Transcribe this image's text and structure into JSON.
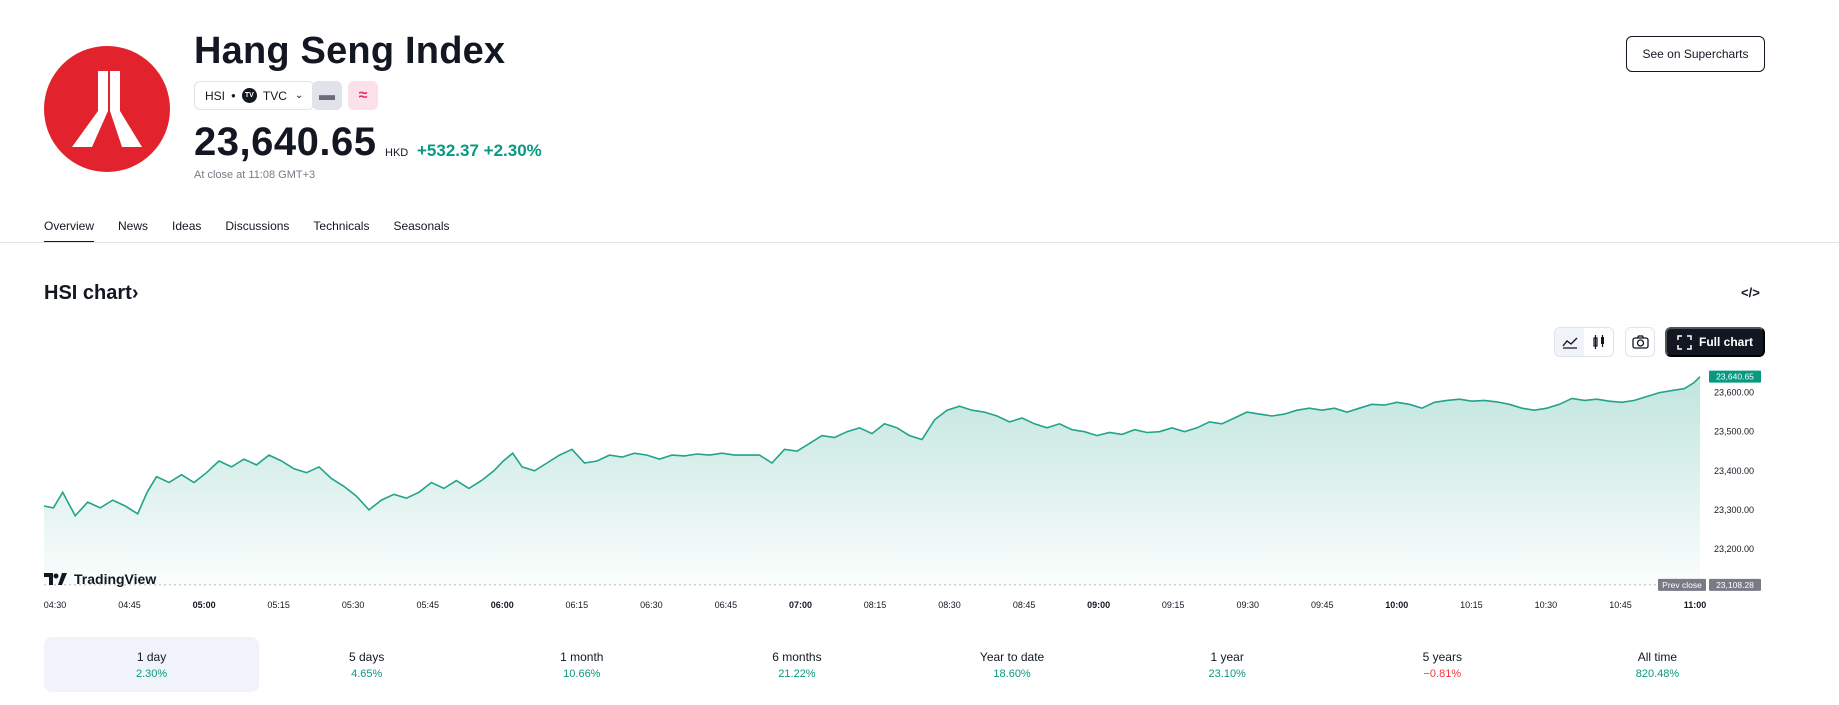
{
  "header": {
    "title": "Hang Seng Index",
    "symbol": "HSI",
    "exchange": "TVC",
    "exchange_badge": "TV",
    "price": "23,640.65",
    "currency": "HKD",
    "change": "+532.37 +2.30%",
    "close_note": "At close at 11:08 GMT+3",
    "supercharts_label": "See on Supercharts"
  },
  "tabs": [
    "Overview",
    "News",
    "Ideas",
    "Discussions",
    "Technicals",
    "Seasonals"
  ],
  "chart_section": {
    "title": "HSI chart",
    "full_chart_label": "Full chart",
    "tradingview_label": "TradingView"
  },
  "chart_data": {
    "type": "area",
    "x_labels": [
      "04:30",
      "04:45",
      "05:00",
      "05:15",
      "05:30",
      "05:45",
      "06:00",
      "06:15",
      "06:30",
      "06:45",
      "07:00",
      "08:15",
      "08:30",
      "08:45",
      "09:00",
      "09:15",
      "09:30",
      "09:45",
      "10:00",
      "10:15",
      "10:30",
      "10:45",
      "11:00"
    ],
    "x_bold": [
      "05:00",
      "06:00",
      "07:00",
      "09:00",
      "10:00",
      "11:00"
    ],
    "y_ticks": [
      23200,
      23300,
      23400,
      23500,
      23600
    ],
    "y_tick_labels": [
      "23,200.00",
      "23,300.00",
      "23,400.00",
      "23,500.00",
      "23,600.00"
    ],
    "ylim": [
      23108,
      23650
    ],
    "prev_close": 23108.28,
    "prev_close_text": "Prev close",
    "prev_close_label": "23,108.28",
    "last_value": 23640.65,
    "last_label": "23,640.65",
    "line_color": "#22a38b",
    "series": [
      {
        "x": 0,
        "y": 23310
      },
      {
        "x": 0.3,
        "y": 23305
      },
      {
        "x": 0.6,
        "y": 23345
      },
      {
        "x": 1.0,
        "y": 23285
      },
      {
        "x": 1.4,
        "y": 23320
      },
      {
        "x": 1.8,
        "y": 23305
      },
      {
        "x": 2.2,
        "y": 23325
      },
      {
        "x": 2.6,
        "y": 23310
      },
      {
        "x": 3.0,
        "y": 23290
      },
      {
        "x": 3.3,
        "y": 23345
      },
      {
        "x": 3.6,
        "y": 23385
      },
      {
        "x": 4.0,
        "y": 23370
      },
      {
        "x": 4.4,
        "y": 23390
      },
      {
        "x": 4.8,
        "y": 23370
      },
      {
        "x": 5.2,
        "y": 23395
      },
      {
        "x": 5.6,
        "y": 23425
      },
      {
        "x": 6.0,
        "y": 23410
      },
      {
        "x": 6.4,
        "y": 23430
      },
      {
        "x": 6.8,
        "y": 23415
      },
      {
        "x": 7.2,
        "y": 23440
      },
      {
        "x": 7.6,
        "y": 23425
      },
      {
        "x": 8.0,
        "y": 23405
      },
      {
        "x": 8.4,
        "y": 23395
      },
      {
        "x": 8.8,
        "y": 23410
      },
      {
        "x": 9.2,
        "y": 23380
      },
      {
        "x": 9.6,
        "y": 23360
      },
      {
        "x": 10.0,
        "y": 23335
      },
      {
        "x": 10.4,
        "y": 23300
      },
      {
        "x": 10.8,
        "y": 23325
      },
      {
        "x": 11.2,
        "y": 23340
      },
      {
        "x": 11.6,
        "y": 23330
      },
      {
        "x": 12.0,
        "y": 23345
      },
      {
        "x": 12.4,
        "y": 23370
      },
      {
        "x": 12.8,
        "y": 23355
      },
      {
        "x": 13.2,
        "y": 23375
      },
      {
        "x": 13.6,
        "y": 23355
      },
      {
        "x": 14.0,
        "y": 23375
      },
      {
        "x": 14.4,
        "y": 23400
      },
      {
        "x": 14.7,
        "y": 23425
      },
      {
        "x": 15.0,
        "y": 23445
      },
      {
        "x": 15.3,
        "y": 23410
      },
      {
        "x": 15.7,
        "y": 23400
      },
      {
        "x": 16.1,
        "y": 23420
      },
      {
        "x": 16.5,
        "y": 23440
      },
      {
        "x": 16.9,
        "y": 23455
      },
      {
        "x": 17.3,
        "y": 23420
      },
      {
        "x": 17.7,
        "y": 23425
      },
      {
        "x": 18.1,
        "y": 23440
      },
      {
        "x": 18.5,
        "y": 23435
      },
      {
        "x": 18.9,
        "y": 23445
      },
      {
        "x": 19.3,
        "y": 23440
      },
      {
        "x": 19.7,
        "y": 23430
      },
      {
        "x": 20.1,
        "y": 23440
      },
      {
        "x": 20.5,
        "y": 23438
      },
      {
        "x": 20.9,
        "y": 23443
      },
      {
        "x": 21.3,
        "y": 23440
      },
      {
        "x": 21.7,
        "y": 23445
      },
      {
        "x": 22.1,
        "y": 23440
      },
      {
        "x": 22.5,
        "y": 23440
      },
      {
        "x": 22.9,
        "y": 23440
      },
      {
        "x": 23.3,
        "y": 23420
      },
      {
        "x": 23.7,
        "y": 23455
      },
      {
        "x": 24.1,
        "y": 23450
      },
      {
        "x": 24.5,
        "y": 23470
      },
      {
        "x": 24.9,
        "y": 23490
      },
      {
        "x": 25.3,
        "y": 23485
      },
      {
        "x": 25.7,
        "y": 23500
      },
      {
        "x": 26.1,
        "y": 23510
      },
      {
        "x": 26.5,
        "y": 23495
      },
      {
        "x": 26.9,
        "y": 23520
      },
      {
        "x": 27.3,
        "y": 23510
      },
      {
        "x": 27.7,
        "y": 23490
      },
      {
        "x": 28.1,
        "y": 23480
      },
      {
        "x": 28.5,
        "y": 23530
      },
      {
        "x": 28.9,
        "y": 23555
      },
      {
        "x": 29.3,
        "y": 23565
      },
      {
        "x": 29.7,
        "y": 23555
      },
      {
        "x": 30.1,
        "y": 23550
      },
      {
        "x": 30.5,
        "y": 23540
      },
      {
        "x": 30.9,
        "y": 23525
      },
      {
        "x": 31.3,
        "y": 23535
      },
      {
        "x": 31.7,
        "y": 23520
      },
      {
        "x": 32.1,
        "y": 23510
      },
      {
        "x": 32.5,
        "y": 23520
      },
      {
        "x": 32.9,
        "y": 23505
      },
      {
        "x": 33.3,
        "y": 23500
      },
      {
        "x": 33.7,
        "y": 23490
      },
      {
        "x": 34.1,
        "y": 23498
      },
      {
        "x": 34.5,
        "y": 23493
      },
      {
        "x": 34.9,
        "y": 23505
      },
      {
        "x": 35.3,
        "y": 23498
      },
      {
        "x": 35.7,
        "y": 23500
      },
      {
        "x": 36.1,
        "y": 23510
      },
      {
        "x": 36.5,
        "y": 23500
      },
      {
        "x": 36.9,
        "y": 23510
      },
      {
        "x": 37.3,
        "y": 23525
      },
      {
        "x": 37.7,
        "y": 23520
      },
      {
        "x": 38.1,
        "y": 23535
      },
      {
        "x": 38.5,
        "y": 23550
      },
      {
        "x": 38.9,
        "y": 23545
      },
      {
        "x": 39.3,
        "y": 23540
      },
      {
        "x": 39.7,
        "y": 23545
      },
      {
        "x": 40.1,
        "y": 23555
      },
      {
        "x": 40.5,
        "y": 23560
      },
      {
        "x": 40.9,
        "y": 23555
      },
      {
        "x": 41.3,
        "y": 23560
      },
      {
        "x": 41.7,
        "y": 23550
      },
      {
        "x": 42.1,
        "y": 23560
      },
      {
        "x": 42.5,
        "y": 23570
      },
      {
        "x": 42.9,
        "y": 23568
      },
      {
        "x": 43.3,
        "y": 23575
      },
      {
        "x": 43.7,
        "y": 23570
      },
      {
        "x": 44.1,
        "y": 23560
      },
      {
        "x": 44.5,
        "y": 23575
      },
      {
        "x": 44.9,
        "y": 23580
      },
      {
        "x": 45.3,
        "y": 23583
      },
      {
        "x": 45.7,
        "y": 23578
      },
      {
        "x": 46.1,
        "y": 23580
      },
      {
        "x": 46.5,
        "y": 23576
      },
      {
        "x": 46.9,
        "y": 23570
      },
      {
        "x": 47.3,
        "y": 23560
      },
      {
        "x": 47.7,
        "y": 23555
      },
      {
        "x": 48.1,
        "y": 23560
      },
      {
        "x": 48.5,
        "y": 23570
      },
      {
        "x": 48.9,
        "y": 23585
      },
      {
        "x": 49.3,
        "y": 23580
      },
      {
        "x": 49.7,
        "y": 23583
      },
      {
        "x": 50.1,
        "y": 23578
      },
      {
        "x": 50.5,
        "y": 23575
      },
      {
        "x": 50.9,
        "y": 23580
      },
      {
        "x": 51.3,
        "y": 23590
      },
      {
        "x": 51.7,
        "y": 23600
      },
      {
        "x": 52.1,
        "y": 23605
      },
      {
        "x": 52.5,
        "y": 23610
      },
      {
        "x": 52.8,
        "y": 23625
      },
      {
        "x": 53.0,
        "y": 23640.65
      }
    ]
  },
  "periods": [
    {
      "label": "1 day",
      "value": "2.30%",
      "dir": "pos"
    },
    {
      "label": "5 days",
      "value": "4.65%",
      "dir": "pos"
    },
    {
      "label": "1 month",
      "value": "10.66%",
      "dir": "pos"
    },
    {
      "label": "6 months",
      "value": "21.22%",
      "dir": "pos"
    },
    {
      "label": "Year to date",
      "value": "18.60%",
      "dir": "pos"
    },
    {
      "label": "1 year",
      "value": "23.10%",
      "dir": "pos"
    },
    {
      "label": "5 years",
      "value": "−0.81%",
      "dir": "neg"
    },
    {
      "label": "All time",
      "value": "820.48%",
      "dir": "pos"
    }
  ],
  "colors": {
    "accent_green": "#089981",
    "accent_red": "#f23645",
    "logo_red": "#e2232e",
    "text": "#131722"
  }
}
